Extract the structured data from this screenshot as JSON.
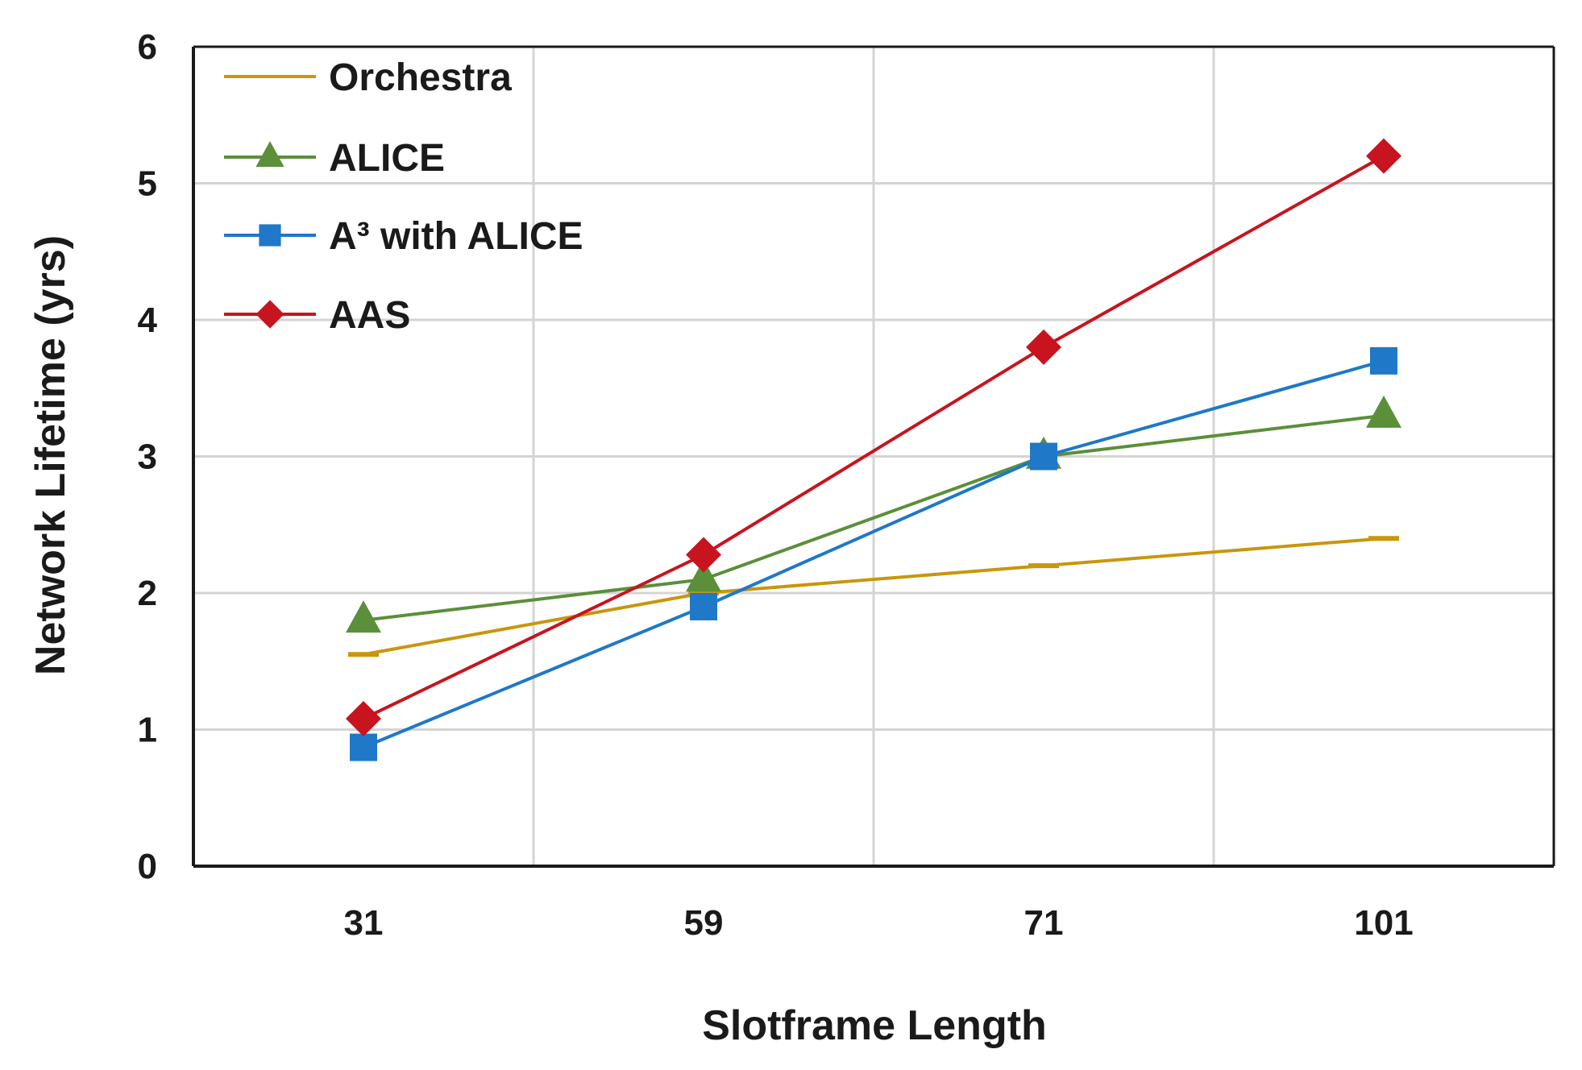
{
  "chart_data": {
    "type": "line",
    "title": "",
    "xlabel": "Slotframe Length",
    "ylabel": "Network Lifetime (yrs)",
    "categories": [
      "31",
      "59",
      "71",
      "101"
    ],
    "ylim": [
      0,
      6
    ],
    "yticks": [
      "0",
      "1",
      "2",
      "3",
      "4",
      "5",
      "6"
    ],
    "grid": true,
    "legend_position": "top-left",
    "series": [
      {
        "name": "Orchestra",
        "values": [
          1.55,
          2.0,
          2.2,
          2.4
        ],
        "color": "#C9960C",
        "marker": "dash"
      },
      {
        "name": "ALICE",
        "values": [
          1.8,
          2.1,
          3.0,
          3.3
        ],
        "color": "#5B8F3A",
        "marker": "triangle"
      },
      {
        "name": "A³ with ALICE",
        "values": [
          0.87,
          1.9,
          3.0,
          3.7
        ],
        "color": "#1F78C8",
        "marker": "square"
      },
      {
        "name": "AAS",
        "values": [
          1.08,
          2.28,
          3.8,
          5.2
        ],
        "color": "#C8141E",
        "marker": "diamond"
      }
    ]
  }
}
